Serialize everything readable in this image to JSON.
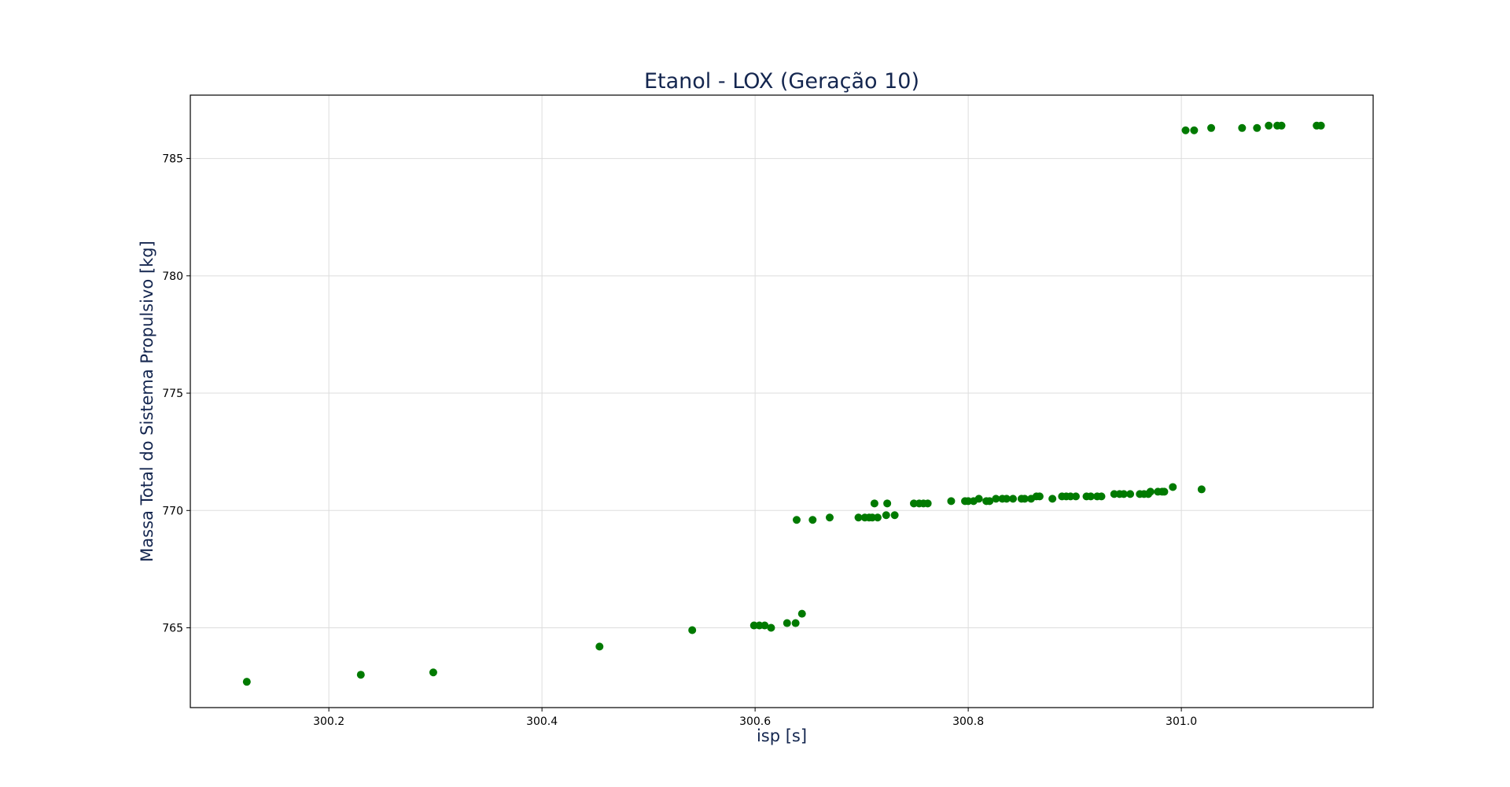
{
  "colors": {
    "title": "#14264f",
    "axis_label": "#14264f",
    "points": "#007a00",
    "grid": "#dddddd",
    "axis": "#000000"
  },
  "chart_data": {
    "type": "scatter",
    "title": "Etanol - LOX (Geração 10)",
    "xlabel": "isp [s]",
    "ylabel": "Massa Total do Sistema Propulsivo [kg]",
    "xlim": [
      300.07,
      301.18
    ],
    "ylim": [
      761.6,
      787.7
    ],
    "xticks": [
      300.2,
      300.4,
      300.6,
      300.8,
      301.0
    ],
    "xtick_labels": [
      "300.2",
      "300.4",
      "300.6",
      "300.8",
      "301.0"
    ],
    "yticks": [
      765,
      770,
      775,
      780,
      785
    ],
    "ytick_labels": [
      "765",
      "770",
      "775",
      "780",
      "785"
    ],
    "grid": true,
    "legend": "none",
    "series": [
      {
        "x": [
          300.123,
          300.23,
          300.298,
          300.454,
          300.541,
          300.599,
          300.604,
          300.609,
          300.615,
          300.63,
          300.638,
          300.644,
          300.639,
          300.654,
          300.67,
          300.697,
          300.703,
          300.707,
          300.71,
          300.715,
          300.723,
          300.731,
          300.712,
          300.724,
          300.749,
          300.754,
          300.758,
          300.762,
          300.784,
          300.797,
          300.8,
          300.805,
          300.81,
          300.817,
          300.82,
          300.826,
          300.832,
          300.836,
          300.842,
          300.85,
          300.853,
          300.859,
          300.864,
          300.867,
          300.879,
          300.888,
          300.892,
          300.896,
          300.901,
          300.911,
          300.915,
          300.921,
          300.925,
          300.937,
          300.942,
          300.946,
          300.952,
          300.961,
          300.965,
          300.969,
          300.971,
          300.978,
          300.982,
          300.984,
          300.992,
          301.019,
          301.004,
          301.012,
          301.028,
          301.057,
          301.071,
          301.082,
          301.09,
          301.094,
          301.127,
          301.131
        ],
        "y": [
          762.7,
          763.0,
          763.1,
          764.2,
          764.9,
          765.1,
          765.1,
          765.1,
          765.0,
          765.2,
          765.2,
          765.6,
          769.6,
          769.6,
          769.7,
          769.7,
          769.7,
          769.7,
          769.7,
          769.7,
          769.8,
          769.8,
          770.3,
          770.3,
          770.3,
          770.3,
          770.3,
          770.3,
          770.4,
          770.4,
          770.4,
          770.4,
          770.5,
          770.4,
          770.4,
          770.5,
          770.5,
          770.5,
          770.5,
          770.5,
          770.5,
          770.5,
          770.6,
          770.6,
          770.5,
          770.6,
          770.6,
          770.6,
          770.6,
          770.6,
          770.6,
          770.6,
          770.6,
          770.7,
          770.7,
          770.7,
          770.7,
          770.7,
          770.7,
          770.7,
          770.8,
          770.8,
          770.8,
          770.8,
          771.0,
          770.9,
          786.2,
          786.2,
          786.3,
          786.3,
          786.3,
          786.4,
          786.4,
          786.4,
          786.4,
          786.4
        ]
      }
    ]
  }
}
